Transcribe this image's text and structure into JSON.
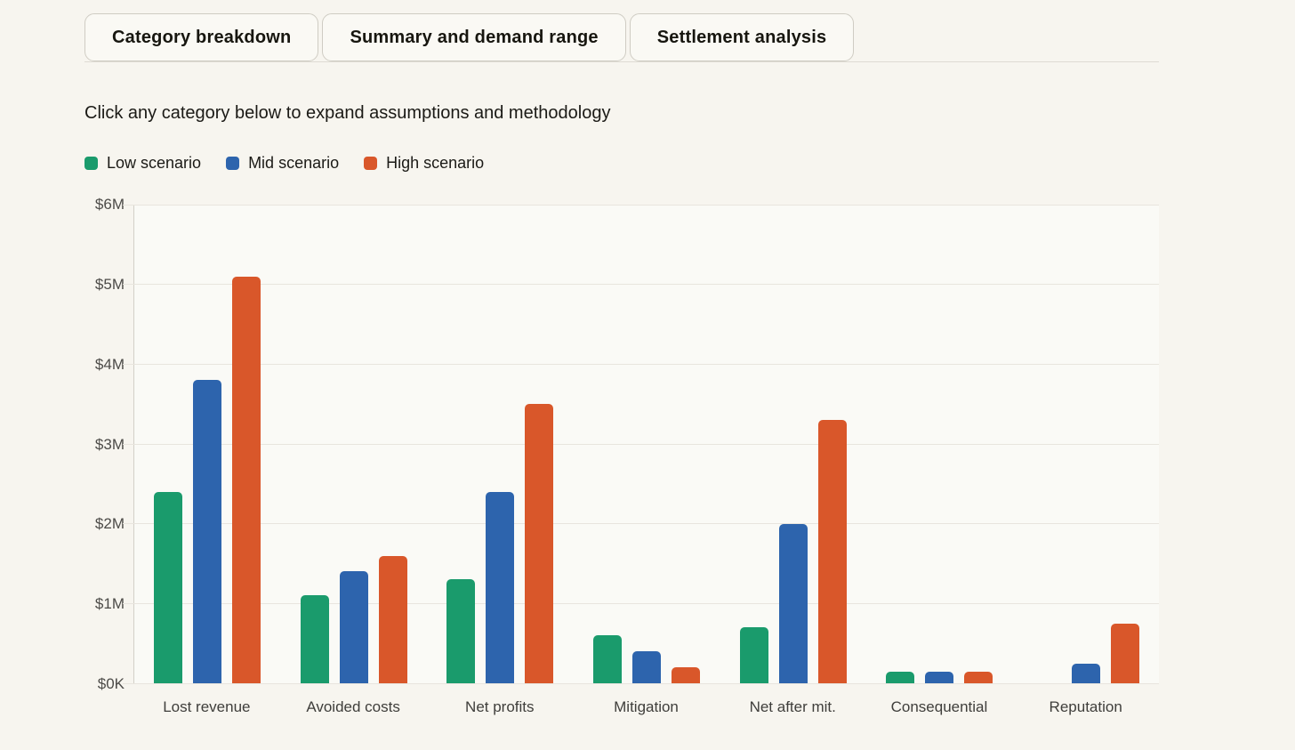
{
  "tabs": [
    {
      "label": "Category breakdown",
      "active": true
    },
    {
      "label": "Summary and demand range",
      "active": false
    },
    {
      "label": "Settlement analysis",
      "active": false
    }
  ],
  "subtitle": "Click any category below to expand assumptions and methodology",
  "colors": {
    "low": "#1a9b6c",
    "mid": "#2d64ad",
    "high": "#d9572a",
    "page_background": "#f7f5ef",
    "gridline": "#e8e5de"
  },
  "chart_data": {
    "type": "bar",
    "title": "",
    "xlabel": "",
    "ylabel": "",
    "unit": "USD millions",
    "grid": true,
    "legend_position": "top",
    "ylim": [
      0,
      6
    ],
    "yticks": [
      "$0K",
      "$1M",
      "$2M",
      "$3M",
      "$4M",
      "$5M",
      "$6M"
    ],
    "categories": [
      "Lost revenue",
      "Avoided costs",
      "Net profits",
      "Mitigation",
      "Net after mit.",
      "Consequential",
      "Reputation"
    ],
    "series": [
      {
        "name": "Low scenario",
        "color": "#1a9b6c",
        "values": [
          2.4,
          1.1,
          1.3,
          0.6,
          0.7,
          0.15,
          0
        ]
      },
      {
        "name": "Mid scenario",
        "color": "#2d64ad",
        "values": [
          3.8,
          1.4,
          2.4,
          0.4,
          2.0,
          0.15,
          0.25
        ]
      },
      {
        "name": "High scenario",
        "color": "#d9572a",
        "values": [
          5.1,
          1.6,
          3.5,
          0.2,
          3.3,
          0.15,
          0.75
        ]
      }
    ]
  }
}
